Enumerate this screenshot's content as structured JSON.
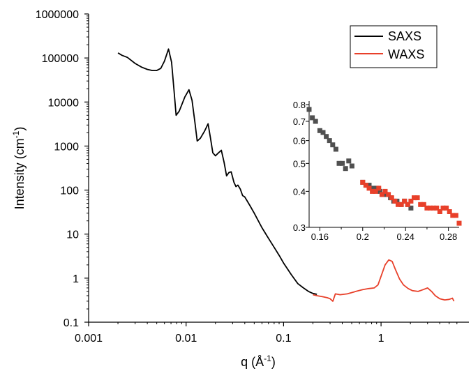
{
  "chart_data": [
    {
      "type": "line",
      "xlabel": "q (Å",
      "xlabel_sup": "-1",
      "xlabel_close": ")",
      "ylabel": "Intensity (cm",
      "ylabel_sup": "-1",
      "ylabel_close": ")",
      "xscale": "log",
      "yscale": "log",
      "xlim": [
        0.001,
        6.5
      ],
      "ylim": [
        0.1,
        1000000
      ],
      "xticks": [
        {
          "value": 0.001,
          "label": "0.001"
        },
        {
          "value": 0.01,
          "label": "0.01"
        },
        {
          "value": 0.1,
          "label": "0.1"
        },
        {
          "value": 1,
          "label": "1"
        }
      ],
      "yticks": [
        {
          "value": 0.1,
          "label": "0.1"
        },
        {
          "value": 1,
          "label": "1"
        },
        {
          "value": 10,
          "label": "10"
        },
        {
          "value": 100,
          "label": "100"
        },
        {
          "value": 1000,
          "label": "1000"
        },
        {
          "value": 10000,
          "label": "10000"
        },
        {
          "value": 100000,
          "label": "100000"
        },
        {
          "value": 1000000,
          "label": "1000000"
        }
      ],
      "grid": false,
      "legend_position": "top-right",
      "series": [
        {
          "name": "SAXS",
          "color": "#000000",
          "points": [
            [
              0.002,
              130000
            ],
            [
              0.0022,
              115000
            ],
            [
              0.0025,
              103000
            ],
            [
              0.003,
              75000
            ],
            [
              0.0035,
              62000
            ],
            [
              0.004,
              55000
            ],
            [
              0.0045,
              52000
            ],
            [
              0.005,
              52000
            ],
            [
              0.0055,
              58000
            ],
            [
              0.006,
              85000
            ],
            [
              0.0066,
              160000
            ],
            [
              0.0071,
              80000
            ],
            [
              0.0075,
              20000
            ],
            [
              0.0079,
              5000
            ],
            [
              0.0085,
              6200
            ],
            [
              0.009,
              8500
            ],
            [
              0.0097,
              13000
            ],
            [
              0.0107,
              19000
            ],
            [
              0.0115,
              11000
            ],
            [
              0.0123,
              3500
            ],
            [
              0.013,
              1300
            ],
            [
              0.014,
              1500
            ],
            [
              0.0155,
              2200
            ],
            [
              0.0168,
              3200
            ],
            [
              0.0178,
              1500
            ],
            [
              0.0188,
              700
            ],
            [
              0.02,
              600
            ],
            [
              0.0215,
              700
            ],
            [
              0.023,
              800
            ],
            [
              0.0245,
              430
            ],
            [
              0.026,
              210
            ],
            [
              0.0275,
              250
            ],
            [
              0.029,
              260
            ],
            [
              0.031,
              150
            ],
            [
              0.0325,
              120
            ],
            [
              0.034,
              130
            ],
            [
              0.036,
              105
            ],
            [
              0.038,
              75
            ],
            [
              0.04,
              70
            ],
            [
              0.045,
              45
            ],
            [
              0.05,
              30
            ],
            [
              0.06,
              14
            ],
            [
              0.07,
              8
            ],
            [
              0.08,
              5
            ],
            [
              0.09,
              3.3
            ],
            [
              0.1,
              2.2
            ],
            [
              0.12,
              1.2
            ],
            [
              0.14,
              0.75
            ],
            [
              0.16,
              0.6
            ],
            [
              0.18,
              0.5
            ],
            [
              0.2,
              0.45
            ],
            [
              0.22,
              0.43
            ]
          ]
        },
        {
          "name": "WAXS",
          "color": "#e8402a",
          "points": [
            [
              0.2,
              0.42
            ],
            [
              0.22,
              0.4
            ],
            [
              0.25,
              0.38
            ],
            [
              0.28,
              0.36
            ],
            [
              0.3,
              0.34
            ],
            [
              0.32,
              0.3
            ],
            [
              0.34,
              0.44
            ],
            [
              0.38,
              0.42
            ],
            [
              0.45,
              0.44
            ],
            [
              0.55,
              0.5
            ],
            [
              0.65,
              0.55
            ],
            [
              0.75,
              0.58
            ],
            [
              0.85,
              0.6
            ],
            [
              0.93,
              0.7
            ],
            [
              1.0,
              1.1
            ],
            [
              1.1,
              2.0
            ],
            [
              1.2,
              2.6
            ],
            [
              1.3,
              2.4
            ],
            [
              1.4,
              1.6
            ],
            [
              1.55,
              0.95
            ],
            [
              1.7,
              0.7
            ],
            [
              1.9,
              0.58
            ],
            [
              2.1,
              0.52
            ],
            [
              2.4,
              0.5
            ],
            [
              2.7,
              0.55
            ],
            [
              3.0,
              0.6
            ],
            [
              3.3,
              0.5
            ],
            [
              3.6,
              0.4
            ],
            [
              4.0,
              0.34
            ],
            [
              4.5,
              0.32
            ],
            [
              5.0,
              0.33
            ],
            [
              5.4,
              0.35
            ],
            [
              5.6,
              0.3
            ]
          ]
        }
      ]
    },
    {
      "type": "scatter",
      "xscale": "linear",
      "yscale": "log",
      "xlim": [
        0.15,
        0.29
      ],
      "ylim": [
        0.3,
        0.8
      ],
      "xticks": [
        {
          "value": 0.16,
          "label": "0.16"
        },
        {
          "value": 0.2,
          "label": "0.2"
        },
        {
          "value": 0.24,
          "label": "0.24"
        },
        {
          "value": 0.28,
          "label": "0.28"
        }
      ],
      "yticks": [
        {
          "value": 0.3,
          "label": "0.3"
        },
        {
          "value": 0.4,
          "label": "0.4"
        },
        {
          "value": 0.5,
          "label": "0.5"
        },
        {
          "value": 0.6,
          "label": "0.6"
        },
        {
          "value": 0.7,
          "label": "0.7"
        },
        {
          "value": 0.8,
          "label": "0.8"
        }
      ],
      "grid": false,
      "series": [
        {
          "color": "#505050",
          "points": [
            [
              0.15,
              0.77
            ],
            [
              0.153,
              0.72
            ],
            [
              0.156,
              0.7
            ],
            [
              0.16,
              0.65
            ],
            [
              0.163,
              0.64
            ],
            [
              0.166,
              0.62
            ],
            [
              0.169,
              0.6
            ],
            [
              0.172,
              0.58
            ],
            [
              0.175,
              0.56
            ],
            [
              0.178,
              0.5
            ],
            [
              0.181,
              0.5
            ],
            [
              0.184,
              0.48
            ],
            [
              0.187,
              0.51
            ],
            [
              0.19,
              0.49
            ],
            [
              0.2,
              0.43
            ],
            [
              0.203,
              0.42
            ],
            [
              0.206,
              0.42
            ],
            [
              0.21,
              0.41
            ],
            [
              0.213,
              0.41
            ],
            [
              0.216,
              0.4
            ],
            [
              0.219,
              0.39
            ],
            [
              0.222,
              0.39
            ],
            [
              0.226,
              0.38
            ],
            [
              0.229,
              0.37
            ],
            [
              0.232,
              0.37
            ],
            [
              0.236,
              0.36
            ],
            [
              0.239,
              0.37
            ],
            [
              0.242,
              0.36
            ],
            [
              0.245,
              0.35
            ]
          ]
        },
        {
          "color": "#e8402a",
          "points": [
            [
              0.2,
              0.43
            ],
            [
              0.203,
              0.42
            ],
            [
              0.206,
              0.41
            ],
            [
              0.209,
              0.4
            ],
            [
              0.212,
              0.4
            ],
            [
              0.215,
              0.41
            ],
            [
              0.218,
              0.39
            ],
            [
              0.221,
              0.4
            ],
            [
              0.224,
              0.39
            ],
            [
              0.227,
              0.38
            ],
            [
              0.23,
              0.37
            ],
            [
              0.233,
              0.36
            ],
            [
              0.236,
              0.36
            ],
            [
              0.239,
              0.37
            ],
            [
              0.242,
              0.36
            ],
            [
              0.245,
              0.37
            ],
            [
              0.248,
              0.38
            ],
            [
              0.251,
              0.38
            ],
            [
              0.254,
              0.36
            ],
            [
              0.257,
              0.36
            ],
            [
              0.26,
              0.35
            ],
            [
              0.263,
              0.35
            ],
            [
              0.266,
              0.35
            ],
            [
              0.269,
              0.35
            ],
            [
              0.272,
              0.34
            ],
            [
              0.275,
              0.35
            ],
            [
              0.278,
              0.35
            ],
            [
              0.281,
              0.34
            ],
            [
              0.284,
              0.33
            ],
            [
              0.287,
              0.33
            ],
            [
              0.29,
              0.31
            ]
          ]
        }
      ]
    }
  ]
}
